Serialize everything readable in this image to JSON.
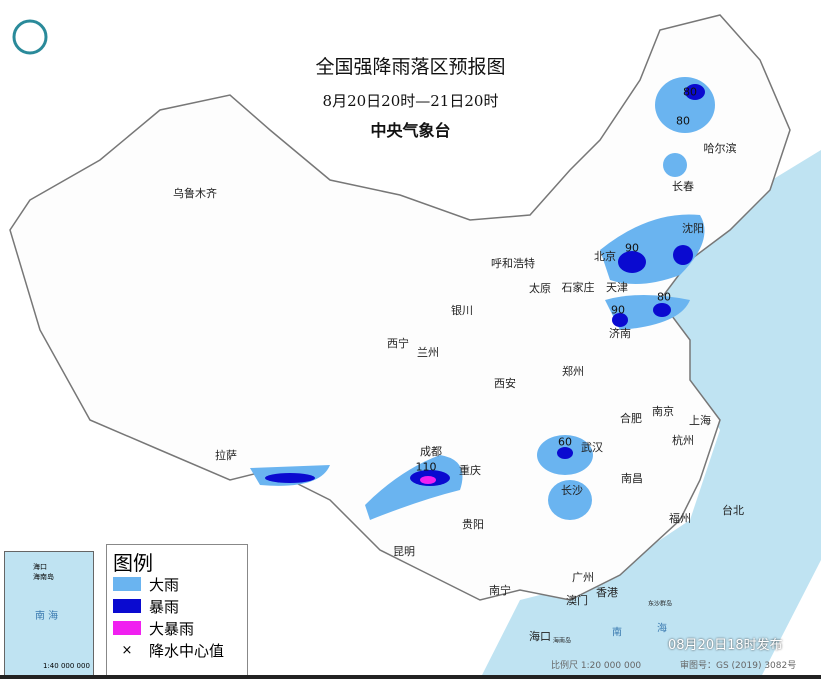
{
  "header": {
    "title": "全国强降雨落区预报图",
    "period": "8月20日20时—21日20时",
    "issuer": "中央气象台"
  },
  "cities": [
    {
      "name": "乌鲁木齐"
    },
    {
      "name": "哈尔滨"
    },
    {
      "name": "长春"
    },
    {
      "name": "沈阳"
    },
    {
      "name": "北京"
    },
    {
      "name": "天津"
    },
    {
      "name": "呼和浩特"
    },
    {
      "name": "石家庄"
    },
    {
      "name": "太原"
    },
    {
      "name": "济南"
    },
    {
      "name": "银川"
    },
    {
      "name": "西宁"
    },
    {
      "name": "兰州"
    },
    {
      "name": "西安"
    },
    {
      "name": "郑州"
    },
    {
      "name": "合肥"
    },
    {
      "name": "南京"
    },
    {
      "name": "上海"
    },
    {
      "name": "杭州"
    },
    {
      "name": "武汉"
    },
    {
      "name": "成都"
    },
    {
      "name": "重庆"
    },
    {
      "name": "拉萨"
    },
    {
      "name": "长沙"
    },
    {
      "name": "南昌"
    },
    {
      "name": "贵阳"
    },
    {
      "name": "昆明"
    },
    {
      "name": "福州"
    },
    {
      "name": "台北"
    },
    {
      "name": "南宁"
    },
    {
      "name": "广州"
    },
    {
      "name": "香港"
    },
    {
      "name": "澳门"
    },
    {
      "name": "海口"
    }
  ],
  "rain_centers": [
    "80",
    "80",
    "90",
    "90",
    "80",
    "60",
    "110"
  ],
  "legend": {
    "title": "图例",
    "items": [
      {
        "label": "大雨",
        "color": "#6ab4f0"
      },
      {
        "label": "暴雨",
        "color": "#0a0ad0"
      },
      {
        "label": "大暴雨",
        "color": "#f020f0"
      },
      {
        "label": "降水中心值",
        "symbol": "×"
      }
    ]
  },
  "inset": {
    "sea": "南 海",
    "island": "海南岛",
    "city": "海口",
    "scale": "1:40 000 000"
  },
  "sea_labels": {
    "south_sea": "南",
    "south_sea2": "海",
    "dongsha": "东沙群岛",
    "hainan": "海南岛"
  },
  "footer": {
    "issued": "08月20日18时发布",
    "scale": "比例尺 1:20 000 000",
    "approval": "审图号：GS (2019) 3082号"
  },
  "colors": {
    "sea": "#bfe3f2",
    "heavy_rain": "#6ab4f0",
    "rainstorm": "#0a0ad0",
    "heavy_rainstorm": "#f020f0"
  }
}
